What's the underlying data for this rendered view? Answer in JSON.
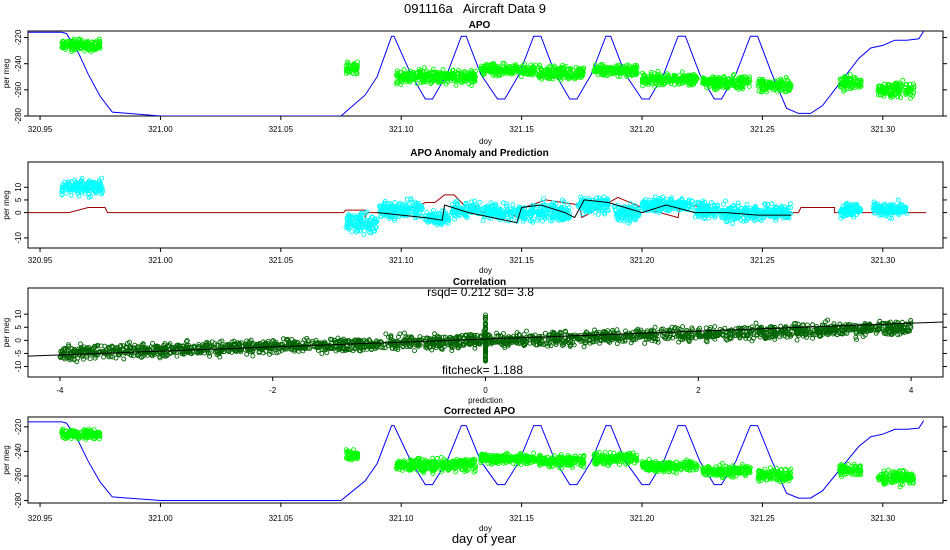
{
  "figure": {
    "title": "091116a   Aircraft Data 9",
    "footer": "day of year"
  },
  "chart_data": [
    {
      "type": "scatter",
      "title": "APO",
      "xlabel": "doy",
      "ylabel": "per meg",
      "xlim": [
        320.945,
        321.325
      ],
      "ylim": [
        -280,
        -215
      ],
      "x_ticks": [
        "320.95",
        "321.00",
        "321.05",
        "321.10",
        "321.15",
        "321.20",
        "321.25",
        "321.30"
      ],
      "y_ticks": [
        "-280",
        "-260",
        "-240",
        "-220"
      ],
      "series": [
        {
          "kind": "line",
          "color": "#0000ff",
          "x": [
            320.945,
            320.959,
            320.961,
            320.966,
            320.97,
            320.975,
            320.98,
            321.0,
            321.05,
            321.075,
            321.08,
            321.085,
            321.09,
            321.096,
            321.097,
            321.104,
            321.11,
            321.113,
            321.119,
            321.125,
            321.127,
            321.133,
            321.14,
            321.143,
            321.149,
            321.155,
            321.158,
            321.164,
            321.17,
            321.173,
            321.179,
            321.185,
            321.187,
            321.193,
            321.2,
            321.203,
            321.209,
            321.215,
            321.218,
            321.224,
            321.23,
            321.233,
            321.239,
            321.245,
            321.248,
            321.254,
            321.26,
            321.265,
            321.27,
            321.275,
            321.28,
            321.285,
            321.29,
            321.295,
            321.3,
            321.305,
            321.31,
            321.315,
            321.317
          ],
          "y": [
            -216,
            -216,
            -217,
            -232,
            -248,
            -265,
            -277,
            -280,
            -280,
            -280,
            -272,
            -264,
            -250,
            -219,
            -219,
            -248,
            -267,
            -267,
            -248,
            -219,
            -219,
            -248,
            -267,
            -267,
            -248,
            -219,
            -219,
            -248,
            -267,
            -267,
            -248,
            -219,
            -219,
            -248,
            -267,
            -267,
            -248,
            -219,
            -219,
            -248,
            -267,
            -267,
            -248,
            -219,
            -219,
            -248,
            -274,
            -278,
            -278,
            -272,
            -260,
            -248,
            -236,
            -228,
            -226,
            -222,
            -222,
            -221,
            -215
          ]
        },
        {
          "kind": "points",
          "color": "#00ff00",
          "x_start": [
            320.959,
            321.077,
            321.098,
            321.133,
            321.157,
            321.18,
            321.2,
            321.225,
            321.248,
            321.282,
            321.298
          ],
          "x_end": [
            320.975,
            321.082,
            321.131,
            321.156,
            321.176,
            321.198,
            321.223,
            321.245,
            321.262,
            321.291,
            321.313
          ],
          "y_mean": [
            -226,
            -243,
            -250,
            -245,
            -247,
            -245,
            -252,
            -254,
            -257,
            -255,
            -260
          ],
          "y_spread": [
            8,
            8,
            10,
            8,
            9,
            9,
            8,
            9,
            10,
            9,
            10
          ]
        }
      ]
    },
    {
      "type": "scatter",
      "title": "APO Anomaly and Prediction",
      "xlabel": "doy",
      "ylabel": "per meg",
      "xlim": [
        320.945,
        321.325
      ],
      "ylim": [
        -14,
        20
      ],
      "x_ticks": [
        "320.95",
        "321.00",
        "321.05",
        "321.10",
        "321.15",
        "321.20",
        "321.25",
        "321.30"
      ],
      "y_ticks": [
        "-10",
        "0",
        "5",
        "10"
      ],
      "series": [
        {
          "kind": "line",
          "color": "#a00000",
          "x": [
            320.945,
            320.962,
            320.97,
            320.977,
            320.978,
            321.076,
            321.077,
            321.085,
            321.085,
            321.086,
            321.097,
            321.098,
            321.106,
            321.11,
            321.114,
            321.118,
            321.122,
            321.126,
            321.13,
            321.134,
            321.142,
            321.15,
            321.151,
            321.16,
            321.174,
            321.175,
            321.19,
            321.2,
            321.215,
            321.216,
            321.225,
            321.225,
            321.226,
            321.245,
            321.265,
            321.266,
            321.28,
            321.28,
            321.318
          ],
          "y": [
            0,
            0,
            2,
            2,
            0,
            0,
            1,
            1,
            -2,
            0,
            0,
            2,
            2,
            4,
            4,
            7,
            7,
            3,
            3,
            0,
            0,
            -2,
            2,
            5,
            3,
            -2,
            6,
            2,
            -2,
            4,
            2,
            -2,
            0,
            0,
            0,
            2,
            2,
            0,
            0
          ]
        },
        {
          "kind": "points",
          "color": "#00ffff",
          "x_start": [
            320.959,
            321.077,
            321.091,
            321.11,
            321.121,
            321.134,
            321.153,
            321.173,
            321.188,
            321.2,
            321.222,
            321.233,
            321.282,
            321.296
          ],
          "x_end": [
            320.976,
            321.09,
            321.109,
            321.12,
            321.133,
            321.152,
            321.17,
            321.186,
            321.199,
            321.221,
            321.232,
            321.262,
            321.291,
            321.31
          ],
          "y_mean": [
            10,
            -4,
            1,
            -2,
            1,
            0,
            0,
            3,
            0,
            3,
            1,
            0,
            1,
            1
          ],
          "y_spread": [
            6,
            8,
            6,
            5,
            6,
            6,
            7,
            6,
            6,
            5,
            6,
            6,
            5,
            5
          ]
        },
        {
          "kind": "line",
          "color": "#000000",
          "x": [
            321.09,
            321.1,
            321.11,
            321.117,
            321.118,
            321.128,
            321.138,
            321.148,
            321.15,
            321.158,
            321.168,
            321.172,
            321.176,
            321.186,
            321.2,
            321.21,
            321.222,
            321.235,
            321.248,
            321.262
          ],
          "y": [
            0,
            -1,
            -2,
            -3,
            3,
            0,
            -2,
            -4,
            2,
            3,
            0,
            -2,
            5,
            4,
            0,
            3,
            0,
            0,
            -1,
            -1
          ]
        }
      ]
    },
    {
      "type": "scatter",
      "title": "Correlation",
      "subtitle": "rsqd= 0.212 sd= 3.8",
      "annotation": "fitcheck= 1.188",
      "xlabel": "prediction",
      "ylabel": "per meg",
      "xlim": [
        -4.3,
        4.3
      ],
      "ylim": [
        -14,
        20
      ],
      "x_ticks": [
        "-4",
        "-2",
        "0",
        "2",
        "4"
      ],
      "y_ticks": [
        "-10",
        "-5",
        "0",
        "5",
        "10"
      ],
      "series": [
        {
          "kind": "points",
          "color": "#006400",
          "band_slope": 1.2,
          "band_intercept": 0,
          "band_spread": 5,
          "x_range": [
            -4,
            4
          ]
        },
        {
          "kind": "line",
          "color": "#000000",
          "x": [
            -4.3,
            4.3
          ],
          "y": [
            -6,
            7
          ]
        }
      ]
    },
    {
      "type": "scatter",
      "title": "Corrected APO",
      "xlabel": "doy",
      "ylabel": "per meg",
      "xlim": [
        320.945,
        321.325
      ],
      "ylim": [
        -282,
        -212
      ],
      "x_ticks": [
        "320.95",
        "321.00",
        "321.05",
        "321.10",
        "321.15",
        "321.20",
        "321.25",
        "321.30"
      ],
      "y_ticks": [
        "-280",
        "-260",
        "-240",
        "-220"
      ],
      "series": [
        {
          "kind": "line",
          "color": "#0000ff",
          "x": [
            320.945,
            320.959,
            320.961,
            320.966,
            320.97,
            320.975,
            320.98,
            321.0,
            321.05,
            321.075,
            321.08,
            321.085,
            321.09,
            321.096,
            321.097,
            321.104,
            321.11,
            321.113,
            321.119,
            321.125,
            321.127,
            321.133,
            321.14,
            321.143,
            321.149,
            321.155,
            321.158,
            321.164,
            321.17,
            321.173,
            321.179,
            321.185,
            321.187,
            321.193,
            321.2,
            321.203,
            321.209,
            321.215,
            321.218,
            321.224,
            321.23,
            321.233,
            321.239,
            321.245,
            321.248,
            321.254,
            321.26,
            321.265,
            321.27,
            321.275,
            321.28,
            321.285,
            321.29,
            321.295,
            321.3,
            321.305,
            321.31,
            321.315,
            321.317
          ],
          "y": [
            -216,
            -216,
            -217,
            -232,
            -248,
            -265,
            -277,
            -280,
            -280,
            -280,
            -272,
            -264,
            -250,
            -219,
            -219,
            -248,
            -267,
            -267,
            -248,
            -219,
            -219,
            -248,
            -267,
            -267,
            -248,
            -219,
            -219,
            -248,
            -267,
            -267,
            -248,
            -219,
            -219,
            -248,
            -267,
            -267,
            -248,
            -219,
            -219,
            -248,
            -267,
            -267,
            -248,
            -219,
            -219,
            -248,
            -274,
            -278,
            -278,
            -272,
            -260,
            -248,
            -236,
            -228,
            -226,
            -222,
            -222,
            -221,
            -215
          ]
        },
        {
          "kind": "points",
          "color": "#00ff00",
          "x_start": [
            320.959,
            321.077,
            321.098,
            321.133,
            321.157,
            321.18,
            321.2,
            321.225,
            321.248,
            321.282,
            321.298
          ],
          "x_end": [
            320.975,
            321.082,
            321.131,
            321.156,
            321.176,
            321.198,
            321.223,
            321.245,
            321.262,
            321.291,
            321.313
          ],
          "y_mean": [
            -226,
            -243,
            -251,
            -246,
            -248,
            -246,
            -252,
            -256,
            -259,
            -255,
            -261
          ],
          "y_spread": [
            8,
            8,
            10,
            8,
            9,
            9,
            8,
            9,
            10,
            9,
            10
          ]
        }
      ]
    }
  ]
}
